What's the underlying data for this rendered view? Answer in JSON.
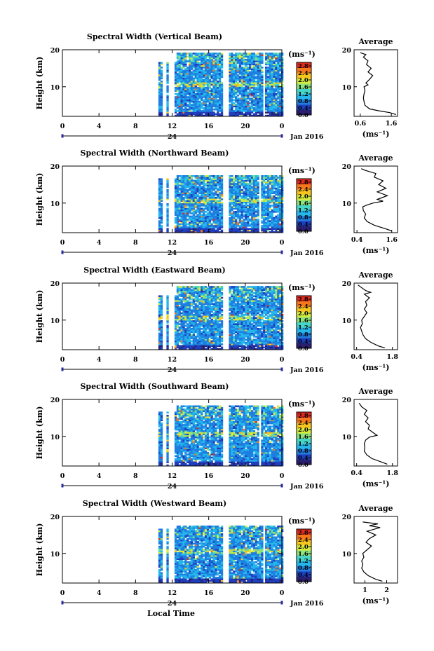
{
  "figure": {
    "xlabel": "Local Time",
    "date_label": "Jan 2016",
    "midnight_label": "24",
    "ylabel": "Height (km)",
    "unit_label": "(ms⁻¹)",
    "avg_title": "Average",
    "colors": {
      "scale": [
        "#2a1f6e",
        "#1e3fbf",
        "#1f7fe0",
        "#23b7ec",
        "#45d6c8",
        "#8be37a",
        "#d8ec3c",
        "#f8c51e",
        "#f7781b",
        "#e02a1e"
      ],
      "line": "#000000",
      "gap": "#ffffff"
    }
  },
  "chart_data": [
    {
      "type": "heatmap",
      "title": "Spectral Width (Vertical Beam)",
      "x_ticks": [
        "0",
        "4",
        "8",
        "12",
        "16",
        "20",
        "0"
      ],
      "x_range_hours": [
        0,
        24
      ],
      "y_ticks": [
        "20",
        "10"
      ],
      "y_range_km": [
        2,
        20
      ],
      "colorbar_ticks": [
        "2.8",
        "2.4",
        "2.0",
        "1.6",
        "1.2",
        "0.8",
        "0.4",
        "0.0"
      ],
      "colorbar_range": [
        0,
        3.0
      ],
      "data_start_hour": 10.5,
      "data_top_km": 19,
      "gap_hours": [
        [
          11.0,
          11.4
        ],
        [
          11.7,
          12.3
        ],
        [
          17.6,
          18.1
        ],
        [
          21.9,
          22.2
        ]
      ],
      "average": {
        "title": "Average",
        "x_ticks": [
          "0.6",
          "1.6"
        ],
        "x_range": [
          0.4,
          1.8
        ],
        "y_ticks": [
          "20",
          "10"
        ],
        "points": [
          [
            1.75,
            2.5
          ],
          [
            1.55,
            3
          ],
          [
            1.2,
            3.5
          ],
          [
            0.9,
            4
          ],
          [
            0.75,
            5
          ],
          [
            0.72,
            6
          ],
          [
            0.7,
            7
          ],
          [
            0.72,
            8
          ],
          [
            0.75,
            9
          ],
          [
            0.72,
            10
          ],
          [
            0.85,
            10.5
          ],
          [
            0.78,
            11
          ],
          [
            0.9,
            12
          ],
          [
            1.0,
            13
          ],
          [
            0.85,
            14
          ],
          [
            0.95,
            15
          ],
          [
            0.8,
            16
          ],
          [
            0.85,
            17
          ],
          [
            0.7,
            18
          ],
          [
            0.78,
            18.7
          ],
          [
            0.6,
            19.2
          ]
        ]
      }
    },
    {
      "type": "heatmap",
      "title": "Spectral Width (Northward Beam)",
      "x_ticks": [
        "0",
        "4",
        "8",
        "12",
        "16",
        "20",
        "0"
      ],
      "x_range_hours": [
        0,
        24
      ],
      "y_ticks": [
        "20",
        "10"
      ],
      "y_range_km": [
        2,
        20
      ],
      "colorbar_ticks": [
        "2.8",
        "2.4",
        "2.0",
        "1.6",
        "1.2",
        "0.8",
        "0.4",
        "0.0"
      ],
      "colorbar_range": [
        0,
        3.0
      ],
      "data_start_hour": 10.5,
      "data_top_km": 17.5,
      "gap_hours": [
        [
          11.0,
          11.4
        ],
        [
          11.7,
          12.3
        ],
        [
          17.6,
          18.1
        ],
        [
          21.4,
          21.8
        ]
      ],
      "average": {
        "title": "Average",
        "x_ticks": [
          "0.4",
          "1.6"
        ],
        "x_range": [
          0.3,
          1.8
        ],
        "y_ticks": [
          "20",
          "10"
        ],
        "points": [
          [
            1.6,
            2.5
          ],
          [
            1.4,
            3
          ],
          [
            1.0,
            4
          ],
          [
            0.75,
            5
          ],
          [
            0.65,
            6
          ],
          [
            0.7,
            7
          ],
          [
            0.62,
            8
          ],
          [
            0.6,
            9
          ],
          [
            0.75,
            9.5
          ],
          [
            0.95,
            10
          ],
          [
            1.3,
            10.5
          ],
          [
            1.1,
            11
          ],
          [
            1.45,
            12
          ],
          [
            1.1,
            13
          ],
          [
            1.4,
            14
          ],
          [
            1.15,
            15
          ],
          [
            1.3,
            16
          ],
          [
            1.0,
            17
          ],
          [
            1.05,
            18
          ],
          [
            0.7,
            18.8
          ],
          [
            0.55,
            19.3
          ]
        ]
      }
    },
    {
      "type": "heatmap",
      "title": "Spectral Width (Eastward Beam)",
      "x_ticks": [
        "0",
        "4",
        "8",
        "12",
        "16",
        "20",
        "0"
      ],
      "x_range_hours": [
        0,
        24
      ],
      "y_ticks": [
        "20",
        "10"
      ],
      "y_range_km": [
        2,
        20
      ],
      "colorbar_ticks": [
        "2.8",
        "2.4",
        "2.0",
        "1.6",
        "1.2",
        "0.8",
        "0.4",
        "0.0"
      ],
      "colorbar_range": [
        0,
        3.0
      ],
      "data_start_hour": 10.5,
      "data_top_km": 19,
      "gap_hours": [
        [
          11.0,
          11.4
        ],
        [
          11.7,
          12.3
        ],
        [
          17.6,
          18.1
        ]
      ],
      "average": {
        "title": "Average",
        "x_ticks": [
          "0.4",
          "1.8"
        ],
        "x_range": [
          0.3,
          2.0
        ],
        "y_ticks": [
          "20",
          "10"
        ],
        "points": [
          [
            1.5,
            2.5
          ],
          [
            1.25,
            3
          ],
          [
            0.95,
            4
          ],
          [
            0.75,
            5
          ],
          [
            0.65,
            6
          ],
          [
            0.6,
            7
          ],
          [
            0.55,
            8
          ],
          [
            0.62,
            9
          ],
          [
            0.6,
            10
          ],
          [
            0.7,
            11
          ],
          [
            0.8,
            12
          ],
          [
            0.7,
            13
          ],
          [
            0.8,
            14
          ],
          [
            0.75,
            15
          ],
          [
            0.9,
            16
          ],
          [
            0.7,
            17
          ],
          [
            0.95,
            17.5
          ],
          [
            0.75,
            18
          ],
          [
            0.55,
            19
          ],
          [
            0.45,
            19.5
          ]
        ]
      }
    },
    {
      "type": "heatmap",
      "title": "Spectral Width (Southward Beam)",
      "x_ticks": [
        "0",
        "4",
        "8",
        "12",
        "16",
        "20",
        "0"
      ],
      "x_range_hours": [
        0,
        24
      ],
      "y_ticks": [
        "20",
        "10"
      ],
      "y_range_km": [
        2,
        20
      ],
      "colorbar_ticks": [
        "2.8",
        "2.4",
        "2.0",
        "1.6",
        "1.2",
        "0.8",
        "0.4",
        "0.0"
      ],
      "colorbar_range": [
        0,
        3.0
      ],
      "data_start_hour": 10.5,
      "data_top_km": 18,
      "gap_hours": [
        [
          11.0,
          11.4
        ],
        [
          11.7,
          12.3
        ],
        [
          17.6,
          18.1
        ],
        [
          21.4,
          21.8
        ]
      ],
      "average": {
        "title": "Average",
        "x_ticks": [
          "0.4",
          "1.8"
        ],
        "x_range": [
          0.3,
          2.0
        ],
        "y_ticks": [
          "20",
          "10"
        ],
        "points": [
          [
            1.6,
            2.5
          ],
          [
            1.4,
            3
          ],
          [
            1.0,
            4
          ],
          [
            0.8,
            5
          ],
          [
            0.7,
            6
          ],
          [
            0.72,
            7
          ],
          [
            0.7,
            8
          ],
          [
            0.75,
            9
          ],
          [
            0.9,
            9.8
          ],
          [
            1.2,
            10.3
          ],
          [
            1.05,
            11
          ],
          [
            0.85,
            12
          ],
          [
            0.9,
            13
          ],
          [
            0.75,
            14
          ],
          [
            0.85,
            15
          ],
          [
            0.7,
            16
          ],
          [
            0.8,
            17
          ],
          [
            0.6,
            18
          ],
          [
            0.5,
            19
          ]
        ]
      }
    },
    {
      "type": "heatmap",
      "title": "Spectral Width (Westward Beam)",
      "x_ticks": [
        "0",
        "4",
        "8",
        "12",
        "16",
        "20",
        "0"
      ],
      "x_range_hours": [
        0,
        24
      ],
      "y_ticks": [
        "20",
        "10"
      ],
      "y_range_km": [
        2,
        20
      ],
      "colorbar_ticks": [
        "2.8",
        "2.4",
        "2.0",
        "1.6",
        "1.2",
        "0.8",
        "0.4",
        "0.0"
      ],
      "colorbar_range": [
        0,
        3.0
      ],
      "data_start_hour": 10.5,
      "data_top_km": 17.5,
      "gap_hours": [
        [
          11.0,
          11.4
        ],
        [
          11.7,
          12.3
        ],
        [
          17.6,
          18.1
        ],
        [
          21.9,
          22.2
        ]
      ],
      "average": {
        "title": "Average",
        "x_ticks": [
          "1",
          "2"
        ],
        "x_range": [
          0.5,
          2.5
        ],
        "y_ticks": [
          "20",
          "10"
        ],
        "points": [
          [
            1.8,
            2.5
          ],
          [
            1.5,
            3
          ],
          [
            1.15,
            4
          ],
          [
            0.95,
            5
          ],
          [
            0.85,
            6
          ],
          [
            0.9,
            7
          ],
          [
            0.85,
            8
          ],
          [
            0.95,
            9
          ],
          [
            0.9,
            10
          ],
          [
            1.1,
            11
          ],
          [
            1.3,
            12
          ],
          [
            1.05,
            13
          ],
          [
            1.2,
            14
          ],
          [
            1.5,
            15
          ],
          [
            1.1,
            16
          ],
          [
            1.7,
            17
          ],
          [
            1.2,
            17.5
          ],
          [
            1.6,
            18
          ],
          [
            0.9,
            18.5
          ]
        ]
      }
    }
  ]
}
